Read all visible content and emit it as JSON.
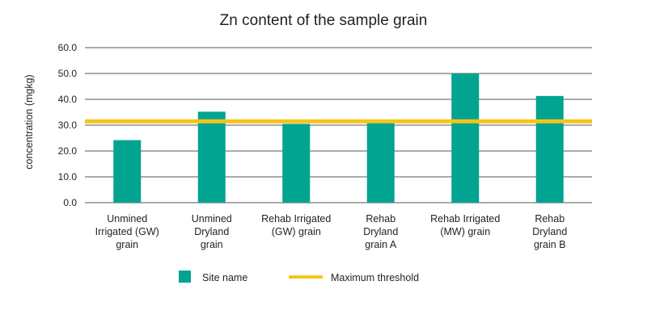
{
  "chart_data": {
    "type": "bar",
    "title": "Zn content of the sample grain",
    "ylabel": "concentration (mgkg)",
    "xlabel": "",
    "ylim": [
      0,
      60
    ],
    "yticks": [
      "0.0",
      "10.0",
      "20.0",
      "30.0",
      "40.0",
      "50.0",
      "60.0"
    ],
    "grid": true,
    "categories": [
      [
        "Unmined",
        "Irrigated (GW)",
        "grain"
      ],
      [
        "Unmined",
        "Dryland",
        "grain"
      ],
      [
        "Rehab Irrigated",
        "(GW) grain"
      ],
      [
        "Rehab",
        "Dryland",
        "grain A"
      ],
      [
        "Rehab Irrigated",
        "(MW) grain"
      ],
      [
        "Rehab",
        "Dryland",
        "grain B"
      ]
    ],
    "series": [
      {
        "name": "Site name",
        "values": [
          24.2,
          35.2,
          30.5,
          31.5,
          50.0,
          41.3
        ],
        "color": "#00a491"
      }
    ],
    "threshold": {
      "name": "Maximum threshold",
      "value": 31.5,
      "color": "#f5c518"
    },
    "legend_position": "bottom-center"
  }
}
